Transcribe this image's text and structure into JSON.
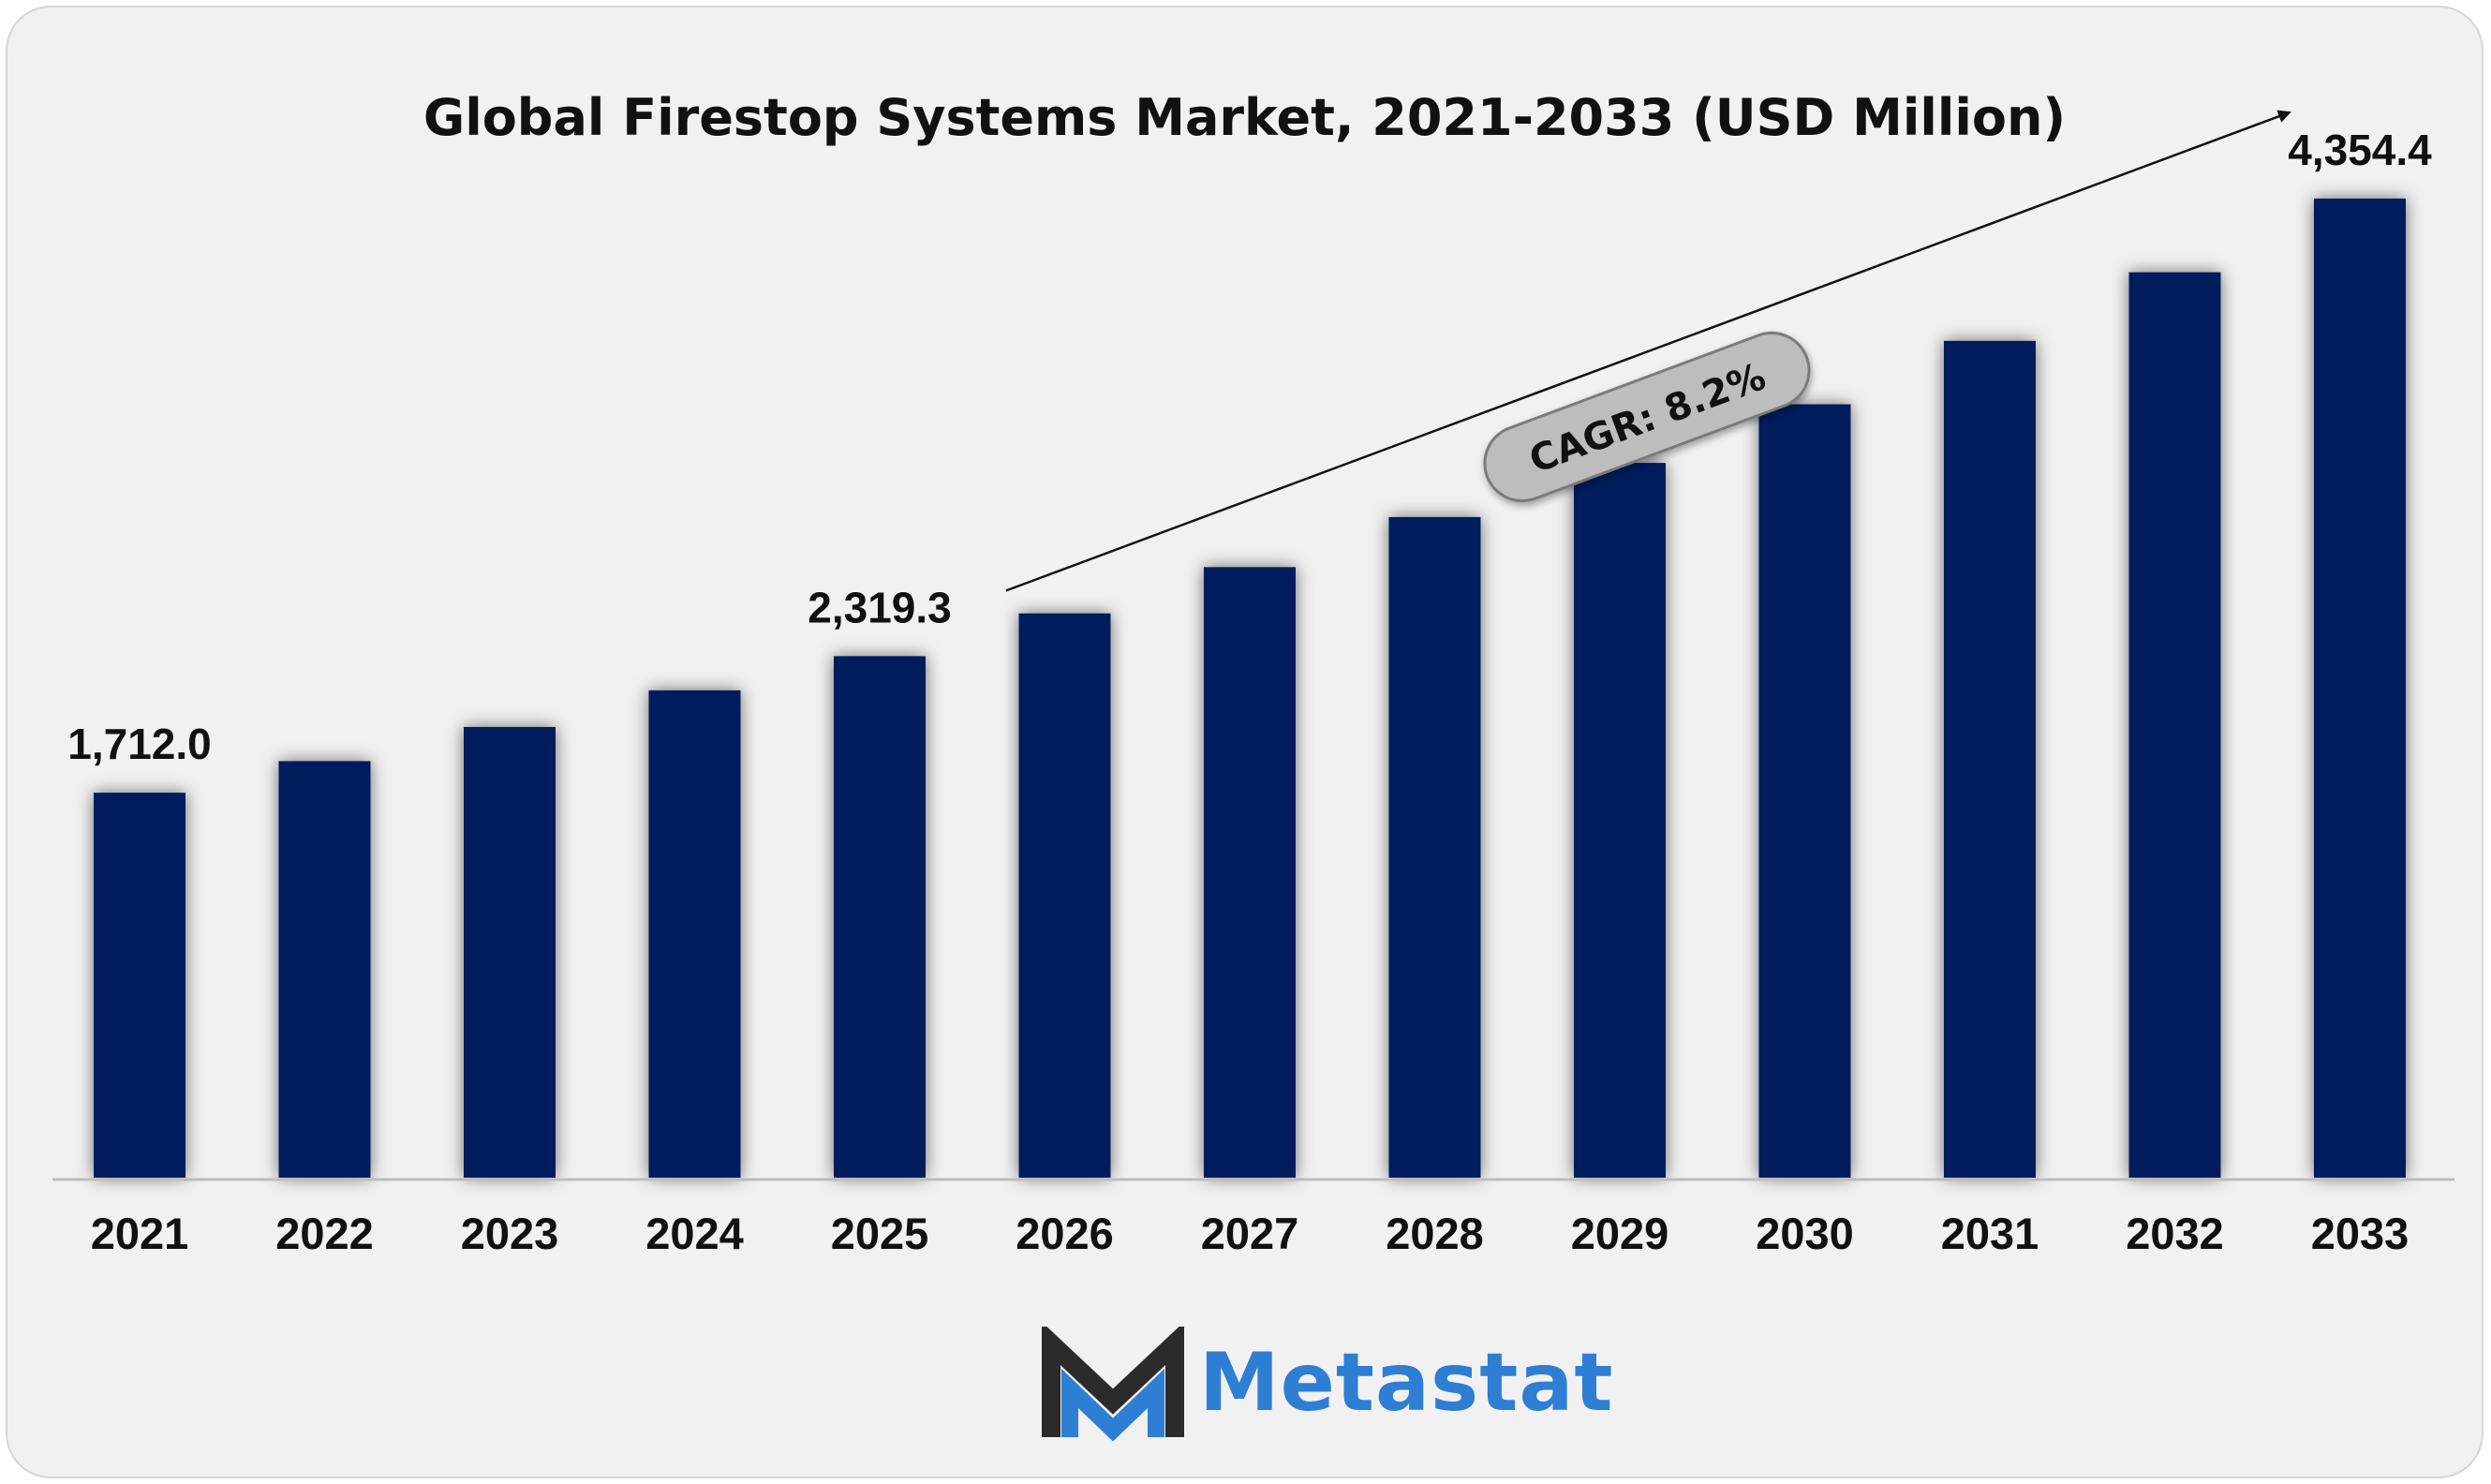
{
  "title": "Global Firestop Systems Market, 2021-2033 (USD Million)",
  "colors": {
    "bar": "#031E5C",
    "background": "#F1F1F1",
    "brand_dark": "#2B2B2B",
    "brand_blue": "#2E7FD4"
  },
  "chart_data": {
    "type": "bar",
    "title": "Global Firestop Systems Market, 2021-2033 (USD Million)",
    "xlabel": "",
    "ylabel": "",
    "categories": [
      "2021",
      "2022",
      "2023",
      "2024",
      "2025",
      "2026",
      "2027",
      "2028",
      "2029",
      "2030",
      "2031",
      "2032",
      "2033"
    ],
    "values": [
      1712.0,
      1852.4,
      2004.3,
      2167.3,
      2319.3,
      2509.5,
      2715.3,
      2937.9,
      3178.8,
      3439.5,
      3721.5,
      4026.7,
      4354.4
    ],
    "data_labels": [
      {
        "index": 0,
        "text": "1,712.0"
      },
      {
        "index": 4,
        "text": "2,319.3"
      },
      {
        "index": 12,
        "text": "4,354.4"
      }
    ],
    "ylim": [
      0,
      4600
    ],
    "grid": false,
    "annotation": {
      "text": "CAGR: 8.2%",
      "from_category": "2025",
      "to_category": "2033"
    }
  },
  "brand": {
    "name": "Metastat",
    "logo_icon": "metastat-m-logo-icon"
  }
}
